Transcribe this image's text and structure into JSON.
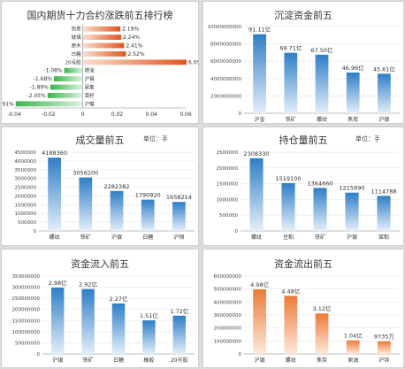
{
  "colors": {
    "up": "#e0541e",
    "down": "#39b54a",
    "blue": "#2f7ec7",
    "orange": "#ee7a38",
    "axis": "#888888",
    "grid": "#e6e6e6"
  },
  "chart_data": [
    {
      "id": "p1",
      "type": "bar",
      "orientation": "horizontal",
      "title": "国内期货十力合约涨跌前五排行榜",
      "categories": [
        "热卷",
        "玻璃",
        "原木",
        "白糖",
        "20号胶",
        "燃油",
        "沪锡",
        "尿素",
        "菜籽",
        "沪镍"
      ],
      "values": [
        0.0219,
        0.0224,
        0.0241,
        0.0252,
        0.0605,
        -0.0108,
        -0.0168,
        -0.0189,
        -0.0205,
        -0.0391
      ],
      "value_labels": [
        "2.19%",
        "2.24%",
        "2.41%",
        "2.52%",
        "6.05%",
        "-1.08%",
        "-1.68%",
        "-1.89%",
        "-2.05%",
        "-3.91%"
      ],
      "xlim": [
        -0.04,
        0.06
      ],
      "xticks": [
        "-0.04",
        "-0.02",
        "0",
        "0.02",
        "0.04",
        "0.06"
      ]
    },
    {
      "id": "p2",
      "type": "bar",
      "title": "沉淀资金前五",
      "unit": "",
      "categories": [
        "沪金",
        "铁矿",
        "螺纹",
        "焦炭",
        "沪银"
      ],
      "values": [
        9111000000,
        6971000000,
        6750000000,
        4696000000,
        4561000000
      ],
      "value_labels": [
        "91.11亿",
        "69.71亿",
        "67.50亿",
        "46.96亿",
        "45.61亿"
      ],
      "ylim": [
        0,
        10000000000
      ],
      "yticks": [
        "0",
        "2000000000",
        "4000000000",
        "6000000000",
        "8000000000",
        "10000000000"
      ],
      "color": "blue"
    },
    {
      "id": "p3",
      "type": "bar",
      "title": "成交量前五",
      "unit": "单位：手",
      "categories": [
        "螺纹",
        "铁矿",
        "沪银",
        "白糖",
        "沪铜"
      ],
      "values": [
        4188360,
        3056200,
        2282382,
        1790920,
        1658214
      ],
      "value_labels": [
        "4188360",
        "3056200",
        "2282382",
        "1790920",
        "1658214"
      ],
      "ylim": [
        0,
        4500000
      ],
      "yticks": [
        "0",
        "500000",
        "1000000",
        "1500000",
        "2000000",
        "2500000",
        "3000000",
        "3500000",
        "4000000",
        "4500000"
      ],
      "color": "blue"
    },
    {
      "id": "p4",
      "type": "bar",
      "title": "持仓量前五",
      "unit": "单位：手",
      "categories": [
        "螺纹",
        "豆粕",
        "铁矿",
        "沪银",
        "菜粕"
      ],
      "values": [
        2308330,
        1519100,
        1364660,
        1215990,
        1114788
      ],
      "value_labels": [
        "2308330",
        "1519100",
        "1364660",
        "1215990",
        "1114788"
      ],
      "ylim": [
        0,
        2500000
      ],
      "yticks": [
        "0",
        "500000",
        "1000000",
        "1500000",
        "2000000",
        "2500000"
      ],
      "color": "blue"
    },
    {
      "id": "p5",
      "type": "bar",
      "title": "资金流入前五",
      "unit": "",
      "categories": [
        "沪银",
        "铁矿",
        "白糖",
        "橡胶",
        "20号胶"
      ],
      "values": [
        298000000,
        292000000,
        227000000,
        151000000,
        172000000
      ],
      "value_labels": [
        "2.98亿",
        "2.92亿",
        "2.27亿",
        "1.51亿",
        "1.72亿"
      ],
      "ylim": [
        0,
        350000000
      ],
      "yticks": [
        "0",
        "50000000",
        "100000000",
        "150000000",
        "200000000",
        "250000000",
        "300000000",
        "350000000"
      ],
      "color": "blue"
    },
    {
      "id": "p6",
      "type": "bar",
      "title": "资金流出前五",
      "unit": "",
      "categories": [
        "沪银",
        "螺纹",
        "焦炭",
        "原油",
        "沪锌"
      ],
      "values": [
        498000000,
        448000000,
        312000000,
        104000000,
        97350000
      ],
      "value_labels": [
        "4.98亿",
        "4.48亿",
        "3.12亿",
        "1.04亿",
        "9735万"
      ],
      "ylim": [
        0,
        600000000
      ],
      "yticks": [
        "0",
        "100000000",
        "200000000",
        "300000000",
        "400000000",
        "500000000",
        "600000000"
      ],
      "color": "orange"
    }
  ]
}
